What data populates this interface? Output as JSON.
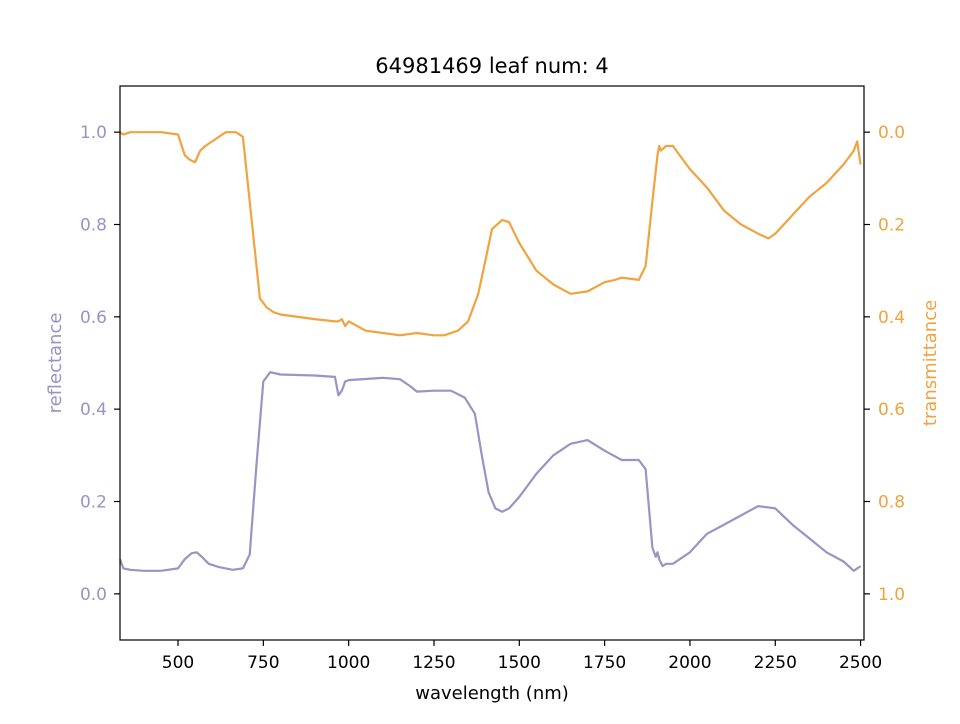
{
  "chart_data": {
    "type": "line",
    "title": "64981469 leaf num: 4",
    "xlabel": "wavelength (nm)",
    "ylabel_left": "reflectance",
    "ylabel_right": "transmittance",
    "xlim": [
      330,
      2510
    ],
    "ylim_left": [
      -0.1,
      1.1
    ],
    "ylim_right": [
      1.1,
      -0.1
    ],
    "xticks": [
      500,
      750,
      1000,
      1250,
      1500,
      1750,
      2000,
      2250,
      2500
    ],
    "yticks_left": [
      0.0,
      0.2,
      0.4,
      0.6,
      0.8,
      1.0
    ],
    "yticks_right": [
      0.0,
      0.2,
      0.4,
      0.6,
      0.8,
      1.0
    ],
    "grid": false,
    "colors": {
      "reflectance": "#9a93c6",
      "transmittance": "#f0a33e",
      "axes": "#000000"
    },
    "series": [
      {
        "name": "reflectance",
        "axis": "left",
        "x": [
          330,
          340,
          360,
          400,
          450,
          500,
          520,
          540,
          555,
          570,
          590,
          620,
          660,
          690,
          710,
          730,
          750,
          770,
          800,
          900,
          960,
          970,
          980,
          990,
          1000,
          1100,
          1150,
          1180,
          1200,
          1250,
          1300,
          1340,
          1370,
          1390,
          1410,
          1430,
          1450,
          1470,
          1500,
          1550,
          1600,
          1650,
          1700,
          1750,
          1800,
          1850,
          1870,
          1890,
          1900,
          1905,
          1910,
          1920,
          1930,
          1950,
          2000,
          2050,
          2100,
          2150,
          2200,
          2250,
          2300,
          2350,
          2400,
          2450,
          2480,
          2500
        ],
        "y": [
          0.075,
          0.055,
          0.052,
          0.05,
          0.05,
          0.055,
          0.075,
          0.088,
          0.09,
          0.08,
          0.065,
          0.058,
          0.052,
          0.055,
          0.085,
          0.28,
          0.46,
          0.48,
          0.475,
          0.473,
          0.47,
          0.43,
          0.44,
          0.46,
          0.463,
          0.468,
          0.465,
          0.45,
          0.438,
          0.44,
          0.44,
          0.425,
          0.39,
          0.3,
          0.22,
          0.185,
          0.178,
          0.185,
          0.21,
          0.26,
          0.3,
          0.325,
          0.333,
          0.31,
          0.29,
          0.29,
          0.27,
          0.1,
          0.08,
          0.09,
          0.075,
          0.06,
          0.065,
          0.065,
          0.09,
          0.13,
          0.15,
          0.17,
          0.19,
          0.185,
          0.15,
          0.12,
          0.09,
          0.07,
          0.05,
          0.06
        ]
      },
      {
        "name": "transmittance",
        "axis": "right",
        "x": [
          330,
          340,
          360,
          400,
          450,
          500,
          520,
          535,
          550,
          565,
          580,
          600,
          640,
          670,
          690,
          700,
          720,
          740,
          760,
          780,
          800,
          900,
          960,
          970,
          980,
          990,
          1000,
          1050,
          1100,
          1150,
          1200,
          1250,
          1280,
          1320,
          1350,
          1380,
          1400,
          1420,
          1450,
          1470,
          1500,
          1550,
          1600,
          1650,
          1700,
          1750,
          1780,
          1800,
          1850,
          1870,
          1890,
          1905,
          1910,
          1915,
          1930,
          1950,
          2000,
          2050,
          2100,
          2150,
          2200,
          2230,
          2250,
          2300,
          2350,
          2400,
          2450,
          2480,
          2490,
          2500
        ],
        "y": [
          0.0,
          0.005,
          0.0,
          0.0,
          0.0,
          0.005,
          0.05,
          0.06,
          0.065,
          0.04,
          0.03,
          0.02,
          0.0,
          0.0,
          0.01,
          0.08,
          0.22,
          0.36,
          0.38,
          0.39,
          0.395,
          0.405,
          0.41,
          0.41,
          0.405,
          0.42,
          0.41,
          0.43,
          0.435,
          0.44,
          0.435,
          0.44,
          0.44,
          0.43,
          0.41,
          0.35,
          0.28,
          0.21,
          0.19,
          0.195,
          0.24,
          0.3,
          0.33,
          0.35,
          0.345,
          0.325,
          0.32,
          0.315,
          0.32,
          0.29,
          0.15,
          0.05,
          0.03,
          0.04,
          0.03,
          0.03,
          0.08,
          0.12,
          0.17,
          0.2,
          0.22,
          0.23,
          0.22,
          0.18,
          0.14,
          0.11,
          0.07,
          0.04,
          0.02,
          0.07
        ]
      }
    ]
  }
}
